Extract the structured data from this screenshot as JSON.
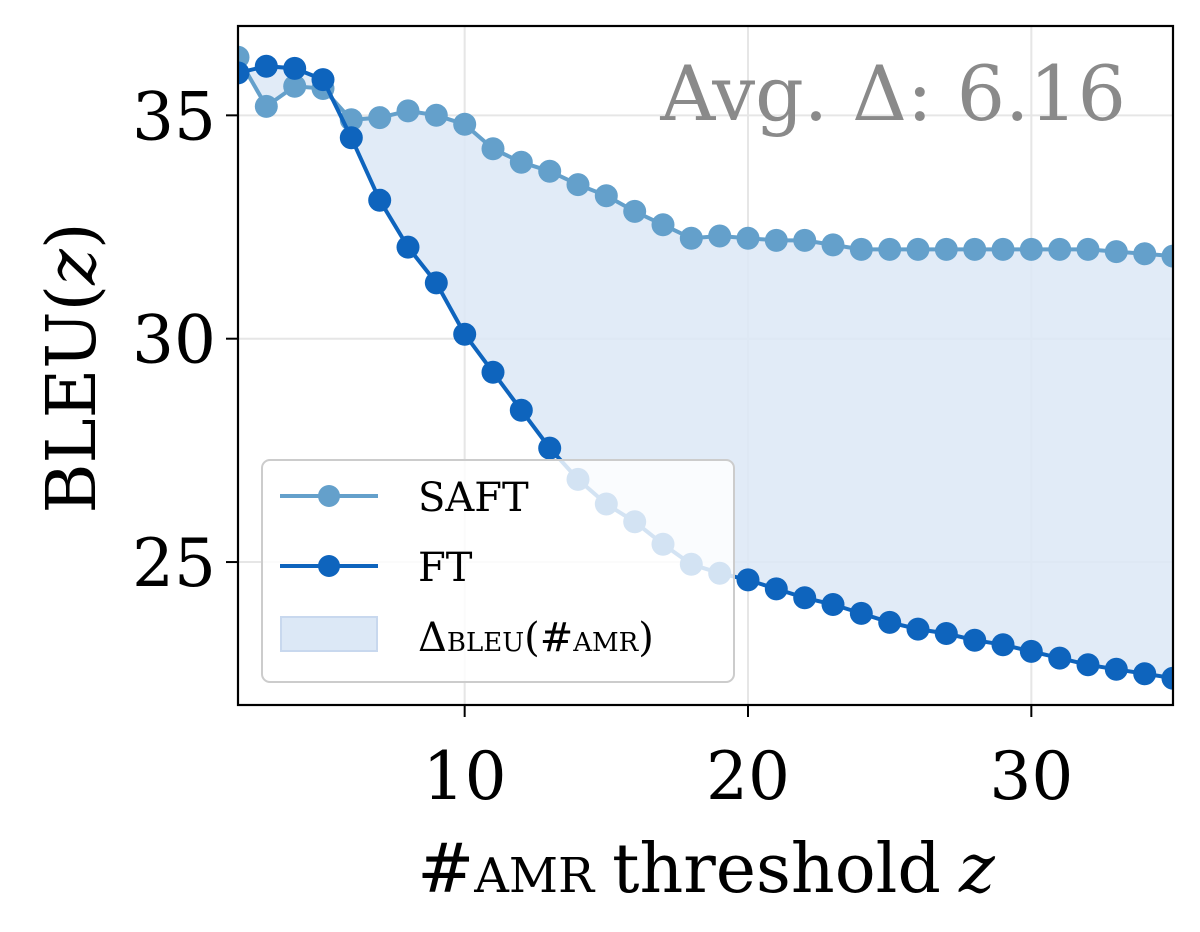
{
  "chart_data": {
    "type": "line",
    "annotation": "Avg. Δ: 6.16",
    "xlabel": "threshold",
    "xlabel_prefix": "#",
    "xlabel_sub": "AMR",
    "xlabel_var": "z",
    "ylabel": "BLEU(",
    "ylabel_var": "z",
    "ylabel_close": ")",
    "xlim": [
      2,
      35
    ],
    "ylim": [
      21.8,
      37
    ],
    "xticks": [
      10,
      20,
      30
    ],
    "yticks": [
      25,
      30,
      35
    ],
    "grid": true,
    "legend_position": "lower-left",
    "x": [
      2,
      3,
      4,
      5,
      6,
      7,
      8,
      9,
      10,
      11,
      12,
      13,
      14,
      15,
      16,
      17,
      18,
      19,
      20,
      21,
      22,
      23,
      24,
      25,
      26,
      27,
      28,
      29,
      30,
      31,
      32,
      33,
      34,
      35
    ],
    "series": [
      {
        "name": "SAFT",
        "color": "#64a0cb",
        "values": [
          36.3,
          35.2,
          35.65,
          35.6,
          34.9,
          34.95,
          35.1,
          35.0,
          34.8,
          34.25,
          33.95,
          33.75,
          33.45,
          33.2,
          32.85,
          32.55,
          32.25,
          32.3,
          32.25,
          32.2,
          32.2,
          32.1,
          32.0,
          32.0,
          32.0,
          32.0,
          32.0,
          32.0,
          32.0,
          32.0,
          32.0,
          31.95,
          31.9,
          31.85
        ]
      },
      {
        "name": "FT",
        "color": "#0e64bd",
        "values": [
          35.95,
          36.1,
          36.05,
          35.8,
          34.5,
          33.1,
          32.05,
          31.25,
          30.1,
          29.25,
          28.4,
          27.55,
          26.85,
          26.3,
          25.9,
          25.4,
          24.95,
          24.75,
          24.6,
          24.4,
          24.2,
          24.05,
          23.85,
          23.65,
          23.5,
          23.4,
          23.25,
          23.15,
          23.0,
          22.85,
          22.7,
          22.6,
          22.5,
          22.4
        ]
      }
    ],
    "fill": {
      "label_symbol": "Δ",
      "label_sub": "BLEU",
      "label_mid": "(#",
      "label_sub2": "AMR",
      "label_end": ")",
      "color": "#dce8f6"
    }
  }
}
